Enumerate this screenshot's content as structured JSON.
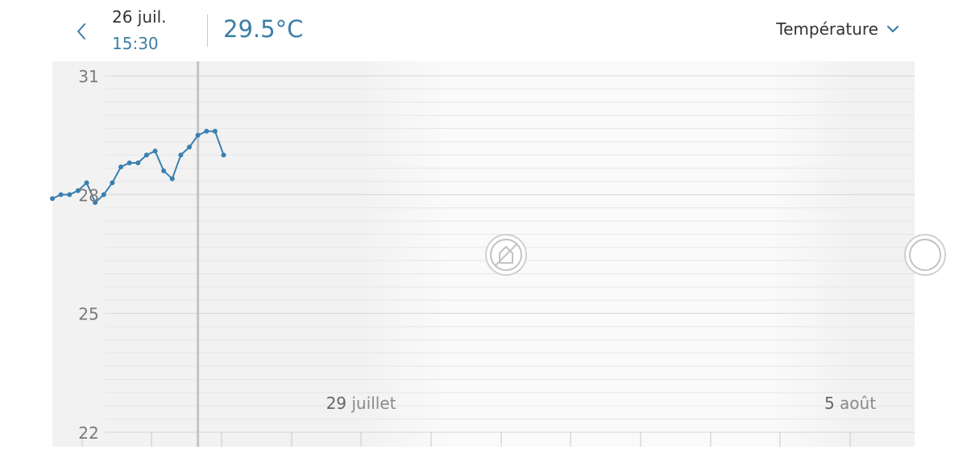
{
  "header": {
    "date": "26 juil.",
    "time": "15:30",
    "reading": "29.5°C",
    "metric_selector": "Température"
  },
  "icons": {
    "back": "chevron-left-icon",
    "dropdown": "chevron-down-icon",
    "no_data": "no-data-icon"
  },
  "colors": {
    "accent": "#3d7ea6",
    "line": "#3a7fb0",
    "cursor": "#c4c4c4",
    "chart_bg": "#f2f2f2",
    "no_data_bg": "#fafafa"
  },
  "chart_data": {
    "type": "line",
    "ylim": [
      22,
      31
    ],
    "yticks": [
      31,
      28,
      25,
      22
    ],
    "x_labels": [
      {
        "day": "29",
        "month": "juillet"
      },
      {
        "day": "5",
        "month": "août"
      }
    ],
    "cursor_x": 8.5,
    "series": [
      {
        "x": [
          0,
          0.5,
          1,
          1.5,
          2,
          2.5,
          3,
          3.5,
          4,
          4.5,
          5,
          5.5,
          6,
          6.5,
          7,
          7.5,
          8,
          8.5,
          9,
          9.5,
          10
        ],
        "values": [
          27.9,
          28.0,
          28.0,
          28.1,
          28.3,
          27.8,
          28.0,
          28.3,
          28.7,
          28.8,
          28.8,
          29.0,
          29.1,
          28.6,
          28.4,
          29.0,
          29.2,
          29.5,
          29.6,
          29.6,
          29.0
        ]
      }
    ]
  }
}
